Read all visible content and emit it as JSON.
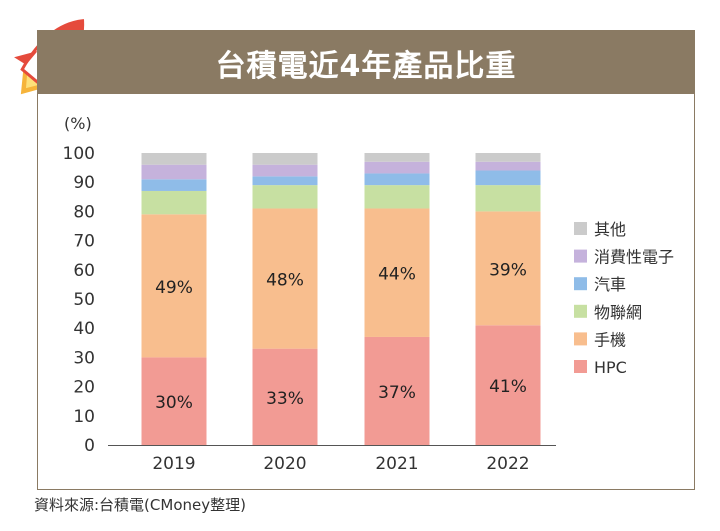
{
  "colors": {
    "banner": "#8a7a63",
    "HPC": "#f29b94",
    "手機": "#f8be8e",
    "物聯網": "#c7e0a2",
    "汽車": "#8fbce8",
    "消費性電子": "#c5b2dc",
    "其他": "#cbcbcb"
  },
  "chart_data": {
    "type": "bar",
    "stacked": true,
    "title": "台積電近4年產品比重",
    "ylabel": "(%)",
    "xlabel": "",
    "ylim": [
      0,
      100
    ],
    "yticks": [
      0,
      10,
      20,
      30,
      40,
      50,
      60,
      70,
      80,
      90,
      100
    ],
    "grid": false,
    "legend_position": "right",
    "categories": [
      "2019",
      "2020",
      "2021",
      "2022"
    ],
    "series": [
      {
        "name": "HPC",
        "values": [
          30,
          33,
          37,
          41
        ],
        "labels": [
          "30%",
          "33%",
          "37%",
          "41%"
        ]
      },
      {
        "name": "手機",
        "values": [
          49,
          48,
          44,
          39
        ],
        "labels": [
          "49%",
          "48%",
          "44%",
          "39%"
        ]
      },
      {
        "name": "物聯網",
        "values": [
          8,
          8,
          8,
          9
        ]
      },
      {
        "name": "汽車",
        "values": [
          4,
          3,
          4,
          5
        ]
      },
      {
        "name": "消費性電子",
        "values": [
          5,
          4,
          4,
          3
        ]
      },
      {
        "name": "其他",
        "values": [
          4,
          4,
          3,
          3
        ]
      }
    ],
    "legend_order": [
      "其他",
      "消費性電子",
      "汽車",
      "物聯網",
      "手機",
      "HPC"
    ]
  },
  "footer": {
    "source": "資料來源:台積電(CMoney整理)"
  }
}
